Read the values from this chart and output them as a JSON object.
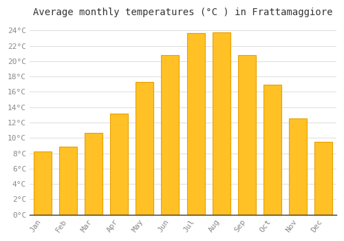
{
  "title": "Average monthly temperatures (°C ) in Frattamaggiore",
  "months": [
    "Jan",
    "Feb",
    "Mar",
    "Apr",
    "May",
    "Jun",
    "Jul",
    "Aug",
    "Sep",
    "Oct",
    "Nov",
    "Dec"
  ],
  "values": [
    8.2,
    8.9,
    10.7,
    13.2,
    17.3,
    20.8,
    23.7,
    23.8,
    20.8,
    16.9,
    12.5,
    9.5
  ],
  "bar_color": "#FFC125",
  "bar_edge_color": "#E8A000",
  "background_color": "#FFFFFF",
  "grid_color": "#DDDDDD",
  "ylim": [
    0,
    25
  ],
  "yticks": [
    0,
    2,
    4,
    6,
    8,
    10,
    12,
    14,
    16,
    18,
    20,
    22,
    24
  ],
  "title_fontsize": 10,
  "tick_fontsize": 8,
  "tick_label_color": "#888888",
  "title_color": "#333333"
}
